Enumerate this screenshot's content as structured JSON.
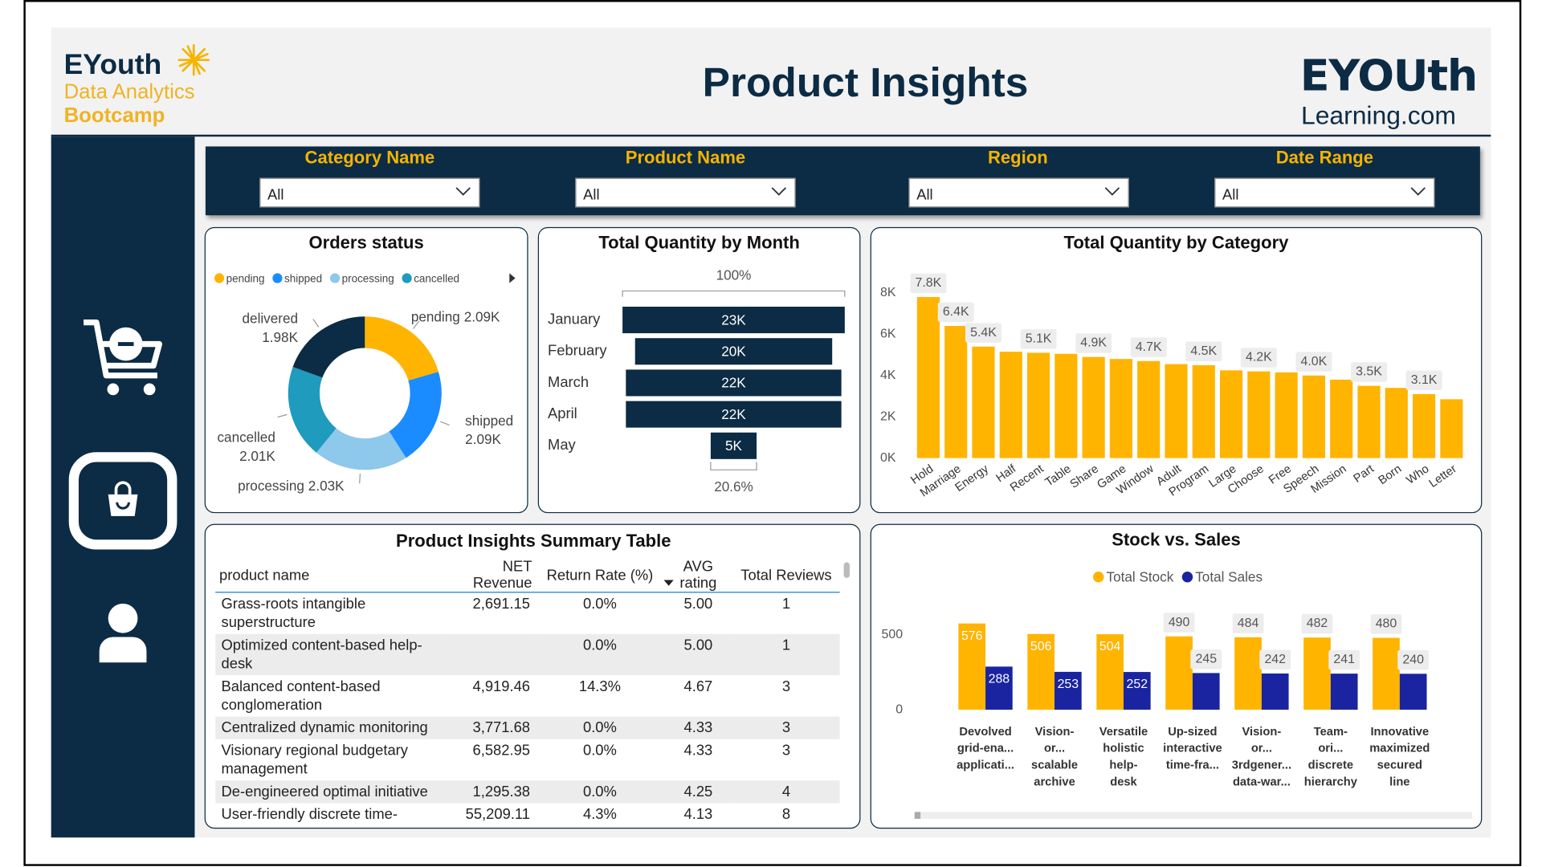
{
  "header": {
    "brand": "EYouth",
    "brand_sub1": "Data Analytics",
    "brand_sub2": "Bootcamp",
    "title": "Product Insights",
    "logo": "EYOUth",
    "logo_sub": "Learning.com"
  },
  "filters": [
    {
      "label": "Category Name",
      "value": "All"
    },
    {
      "label": "Product Name",
      "value": "All"
    },
    {
      "label": "Region",
      "value": "All"
    },
    {
      "label": "Date Range",
      "value": "All"
    }
  ],
  "table": {
    "title": "Product Insights Summary Table",
    "columns": [
      "product name",
      "NET Revenue",
      "Return Rate (%)",
      "AVG rating",
      "Total Reviews"
    ],
    "rows": [
      [
        "Grass-roots intangible superstructure",
        "2,691.15",
        "0.0%",
        "5.00",
        "1"
      ],
      [
        "Optimized content-based help-desk",
        null,
        "0.0%",
        "5.00",
        "1"
      ],
      [
        "Balanced content-based conglomeration",
        "4,919.46",
        "14.3%",
        "4.67",
        "3"
      ],
      [
        "Centralized dynamic monitoring",
        "3,771.68",
        "0.0%",
        "4.33",
        "3"
      ],
      [
        "Visionary regional budgetary management",
        "6,582.95",
        "0.0%",
        "4.33",
        "3"
      ],
      [
        "De-engineered optimal initiative",
        "1,295.38",
        "0.0%",
        "4.25",
        "4"
      ],
      [
        "User-friendly discrete time-",
        "55,209.11",
        "4.3%",
        "4.13",
        "8"
      ]
    ]
  },
  "chart_data": [
    {
      "type": "donut",
      "title": "Orders status",
      "categories": [
        "pending",
        "shipped",
        "processing",
        "cancelled",
        "delivered"
      ],
      "values": [
        2090,
        2090,
        2030,
        2010,
        1980
      ],
      "value_labels": [
        "2.09K",
        "2.09K",
        "2.03K",
        "2.01K",
        "1.98K"
      ],
      "colors": [
        "#ffb400",
        "#1a8cff",
        "#8ec8ea",
        "#1e9bbd",
        "#0c2b44"
      ]
    },
    {
      "type": "funnel",
      "title": "Total Quantity by Month",
      "categories": [
        "January",
        "February",
        "March",
        "April",
        "May"
      ],
      "values": [
        23000,
        20400,
        22300,
        22300,
        4750
      ],
      "value_labels": [
        "23K",
        "20K",
        "22K",
        "22K",
        "5K"
      ],
      "color": "#0c2b44",
      "first_percent_label": "100%",
      "last_percent_label": "20.6%"
    },
    {
      "type": "bar",
      "title": "Total Quantity by Category",
      "categories": [
        "Hold",
        "Marriage",
        "Energy",
        "Half",
        "Recent",
        "Table",
        "Share",
        "Game",
        "Window",
        "Adult",
        "Program",
        "Large",
        "Choose",
        "Free",
        "Speech",
        "Mission",
        "Part",
        "Born",
        "Who",
        "Letter"
      ],
      "values": [
        7800,
        6400,
        5400,
        5150,
        5100,
        5050,
        4900,
        4800,
        4700,
        4550,
        4500,
        4250,
        4200,
        4150,
        4000,
        3800,
        3500,
        3400,
        3100,
        2850
      ],
      "value_labels": [
        "7.8K",
        "6.4K",
        "5.4K",
        null,
        "5.1K",
        null,
        "4.9K",
        null,
        "4.7K",
        null,
        "4.5K",
        null,
        "4.2K",
        null,
        "4.0K",
        null,
        "3.5K",
        null,
        "3.1K",
        null
      ],
      "color": "#ffb400",
      "ylim": [
        0,
        9000
      ],
      "yticks": [
        {
          "value": 0,
          "label": "0K"
        },
        {
          "value": 2000,
          "label": "2K"
        },
        {
          "value": 4000,
          "label": "4K"
        },
        {
          "value": 6000,
          "label": "6K"
        },
        {
          "value": 8000,
          "label": "8K"
        }
      ]
    },
    {
      "type": "grouped_bar",
      "title": "Stock vs. Sales",
      "categories": [
        "Devolved grid-ena... applicati...",
        "Vision-or... scalable archive",
        "Versatile holistic help-desk",
        "Up-sized interactive time-fra...",
        "Vision-or... 3rdgener... data-war...",
        "Team-ori... discrete hierarchy",
        "Innovative maximized secured line"
      ],
      "series": [
        {
          "name": "Total Stock",
          "color": "#ffb400",
          "values": [
            576,
            506,
            504,
            490,
            484,
            482,
            480
          ]
        },
        {
          "name": "Total Sales",
          "color": "#1a24a0",
          "values": [
            288,
            253,
            252,
            245,
            242,
            241,
            240
          ]
        }
      ],
      "ylim": [
        0,
        650
      ],
      "yticks": [
        0,
        500
      ],
      "legend": "top"
    }
  ]
}
